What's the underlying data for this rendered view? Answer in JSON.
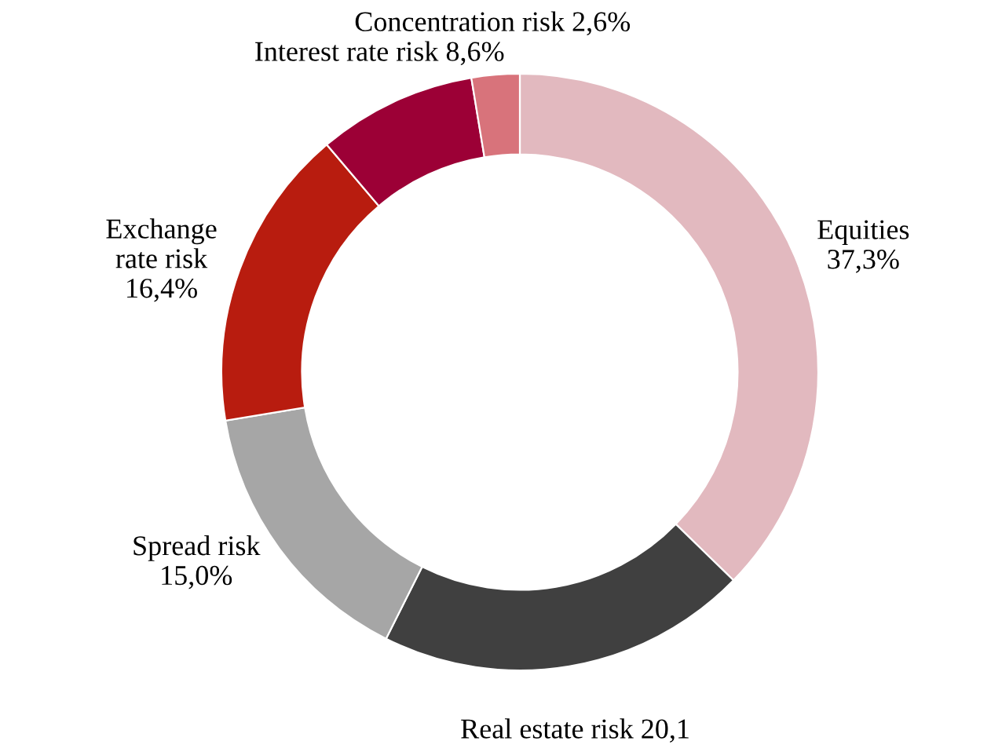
{
  "chart_data": {
    "type": "donut",
    "categories": [
      "Equities",
      "Real estate risk",
      "Spread risk",
      "Exchange\nrate risk",
      "Interest rate risk",
      "Concentration risk"
    ],
    "values": [
      37.3,
      20.1,
      15.0,
      16.4,
      8.6,
      2.6
    ],
    "value_labels": [
      "37,3%",
      "20,1",
      "15,0%",
      "16,4%",
      "8,6%",
      "2,6%"
    ],
    "colors": [
      "#e2b9bf",
      "#404040",
      "#a6a6a6",
      "#b81c0f",
      "#9c0036",
      "#d8737b"
    ]
  }
}
